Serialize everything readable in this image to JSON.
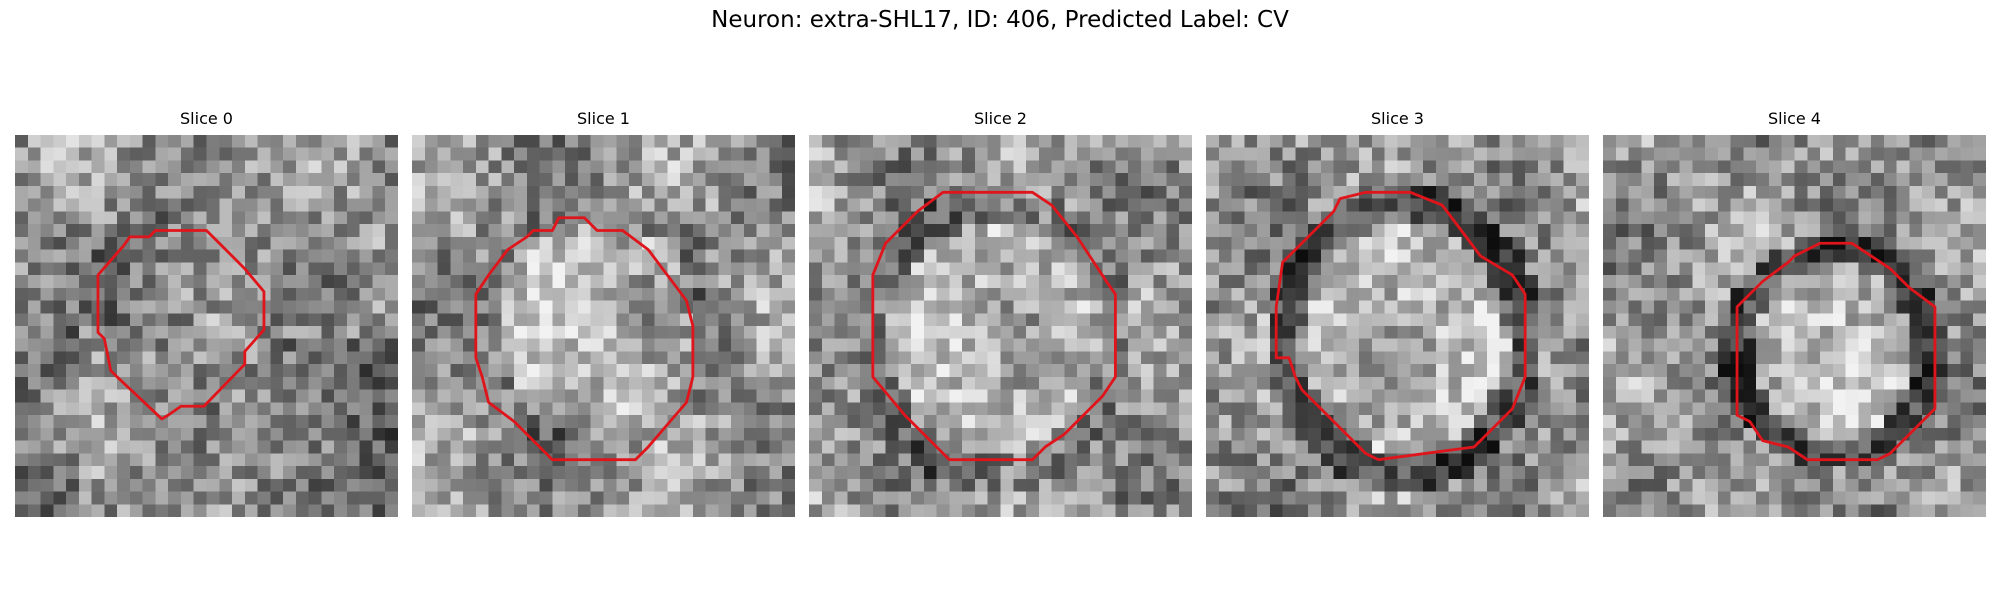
{
  "figure": {
    "suptitle": "Neuron: extra-SHL17, ID: 406, Predicted Label: CV"
  },
  "panels": [
    {
      "title": "Slice 0",
      "seed": 11
    },
    {
      "title": "Slice 1",
      "seed": 23
    },
    {
      "title": "Slice 2",
      "seed": 37
    },
    {
      "title": "Slice 3",
      "seed": 51
    },
    {
      "title": "Slice 4",
      "seed": 73
    }
  ],
  "colors": {
    "contour": "#e0141b"
  }
}
